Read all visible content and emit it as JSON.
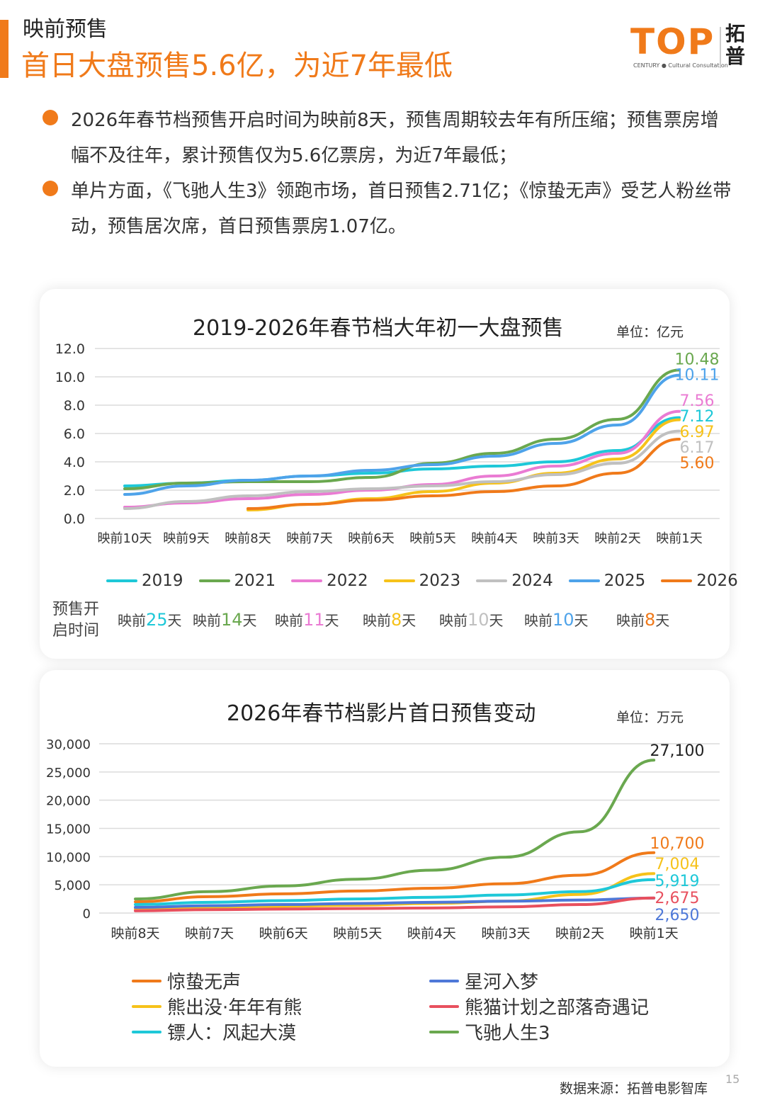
{
  "header": {
    "section": "映前预售",
    "headline": "首日大盘预售5.6亿，为近7年最低"
  },
  "logo": {
    "text": "TOP",
    "sub": "CENTURY ● Cultural Consultation",
    "cn": "拓普"
  },
  "bullets": [
    "2026年春节档预售开启时间为映前8天，预售周期较去年有所压缩；预售票房增幅不及往年，累计预售仅为5.6亿票房，为近7年最低；",
    "单片方面，《飞驰人生3》领跑市场，首日预售2.71亿；《惊蛰无声》受艺人粉丝带动，预售居次席，首日预售票房1.07亿。"
  ],
  "chart_data": [
    {
      "type": "line",
      "title": "2019-2026年春节档大年初一大盘预售",
      "unit": "单位：亿元",
      "categories": [
        "映前10天",
        "映前9天",
        "映前8天",
        "映前7天",
        "映前6天",
        "映前5天",
        "映前4天",
        "映前3天",
        "映前2天",
        "映前1天"
      ],
      "yticks": [
        "12.0",
        "10.0",
        "8.0",
        "6.0",
        "4.0",
        "2.0",
        "0.0"
      ],
      "ylim": [
        0,
        12
      ],
      "series": [
        {
          "name": "2019",
          "color": "#1ec8d8",
          "values": [
            2.3,
            2.5,
            2.7,
            3.0,
            3.2,
            3.5,
            3.7,
            4.0,
            4.8,
            7.12
          ],
          "end_label": "7.12"
        },
        {
          "name": "2021",
          "color": "#6aa84f",
          "values": [
            2.1,
            2.5,
            2.6,
            2.6,
            2.9,
            3.9,
            4.6,
            5.6,
            7.0,
            10.48
          ],
          "end_label": "10.48"
        },
        {
          "name": "2022",
          "color": "#ea7bd3",
          "values": [
            0.8,
            1.1,
            1.4,
            1.7,
            2.0,
            2.4,
            3.0,
            3.7,
            4.6,
            7.56
          ],
          "end_label": "7.56"
        },
        {
          "name": "2023",
          "color": "#f6c21a",
          "values": [
            null,
            null,
            0.6,
            1.0,
            1.4,
            1.9,
            2.5,
            3.2,
            4.2,
            6.97
          ],
          "end_label": "6.97"
        },
        {
          "name": "2024",
          "color": "#c0c0c0",
          "values": [
            0.7,
            1.2,
            1.6,
            1.9,
            2.1,
            2.3,
            2.6,
            3.1,
            3.9,
            6.17
          ],
          "end_label": "6.17"
        },
        {
          "name": "2025",
          "color": "#4ea3ea",
          "values": [
            1.7,
            2.3,
            2.7,
            3.0,
            3.4,
            3.8,
            4.4,
            5.3,
            6.6,
            10.11
          ],
          "end_label": "10.11"
        },
        {
          "name": "2026",
          "color": "#f07a1a",
          "values": [
            null,
            null,
            0.7,
            1.0,
            1.3,
            1.6,
            1.9,
            2.3,
            3.2,
            5.6
          ],
          "end_label": "5.60"
        }
      ],
      "presale_label": "预售开启时间",
      "presale": [
        {
          "prefix": "映前",
          "num": "25",
          "suffix": "天",
          "color": "#1ec8d8"
        },
        {
          "prefix": "映前",
          "num": "14",
          "suffix": "天",
          "color": "#6aa84f"
        },
        {
          "prefix": "映前",
          "num": "11",
          "suffix": "天",
          "color": "#ea7bd3"
        },
        {
          "prefix": "映前",
          "num": "8",
          "suffix": "天",
          "color": "#f6c21a"
        },
        {
          "prefix": "映前",
          "num": "10",
          "suffix": "天",
          "color": "#c0c0c0"
        },
        {
          "prefix": "映前",
          "num": "10",
          "suffix": "天",
          "color": "#4ea3ea"
        },
        {
          "prefix": "映前",
          "num": "8",
          "suffix": "天",
          "color": "#f07a1a"
        }
      ]
    },
    {
      "type": "line",
      "title": "2026年春节档影片首日预售变动",
      "unit": "单位：万元",
      "categories": [
        "映前8天",
        "映前7天",
        "映前6天",
        "映前5天",
        "映前4天",
        "映前3天",
        "映前2天",
        "映前1天"
      ],
      "yticks": [
        "30,000",
        "25,000",
        "20,000",
        "15,000",
        "10,000",
        "5,000",
        "0"
      ],
      "ylim": [
        0,
        30000
      ],
      "series": [
        {
          "name": "惊蛰无声",
          "color": "#f07a1a",
          "values": [
            2000,
            2900,
            3400,
            3900,
            4400,
            5200,
            6700,
            10700
          ],
          "end_label": "10,700"
        },
        {
          "name": "熊出没·年年有熊",
          "color": "#f6c21a",
          "values": [
            700,
            1000,
            1200,
            1400,
            1700,
            2100,
            3300,
            7004
          ],
          "end_label": "7,004"
        },
        {
          "name": "镖人：风起大漠",
          "color": "#1ec8d8",
          "values": [
            1500,
            1900,
            2200,
            2500,
            2800,
            3200,
            3800,
            5919
          ],
          "end_label": "5,919"
        },
        {
          "name": "星河入梦",
          "color": "#4e78d8",
          "values": [
            1000,
            1300,
            1500,
            1700,
            1900,
            2100,
            2300,
            2650
          ],
          "end_label": "2,650"
        },
        {
          "name": "熊猫计划之部落奇遇记",
          "color": "#e8505e",
          "values": [
            400,
            600,
            700,
            800,
            900,
            1100,
            1500,
            2675
          ],
          "end_label": "2,675"
        },
        {
          "name": "飞驰人生3",
          "color": "#6aa84f",
          "values": [
            2500,
            3800,
            4800,
            6000,
            7600,
            9900,
            14400,
            27100
          ],
          "end_label": "27,100"
        }
      ]
    }
  ],
  "footer": {
    "source": "数据来源：拓普电影智库",
    "page": "15"
  }
}
